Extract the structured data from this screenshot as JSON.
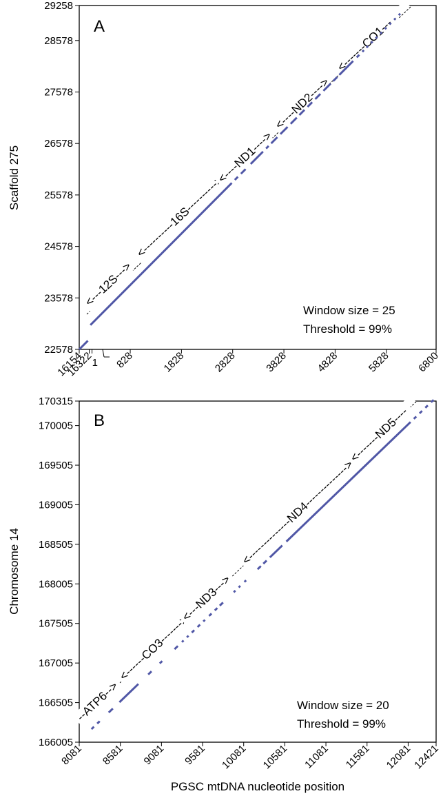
{
  "x_axis_title": "PGSC mtDNA nucleotide position",
  "chart_data": [
    {
      "type": "scatter",
      "panel_label": "A",
      "ylabel": "Scaffold 275",
      "xlabel": "",
      "xlim": [
        16154,
        6800
      ],
      "ylim": [
        22578,
        29258
      ],
      "x_ticks": [
        "16154",
        "16322",
        "1",
        "828",
        "1828",
        "2828",
        "3828",
        "4828",
        "5828",
        "6800"
      ],
      "y_ticks": [
        "22578",
        "23578",
        "24578",
        "25578",
        "26578",
        "27578",
        "28578",
        "29258"
      ],
      "annotations": [
        "Window size = 25",
        "Threshold = 99%"
      ],
      "gene_labels": [
        "<---12S--->",
        "<----------16S---------->",
        "<----ND1---->",
        "<----ND2---->",
        "<-------CO1---"
      ],
      "segments": [
        {
          "x": [
            16154,
            16322
          ],
          "y": [
            22578,
            22746
          ]
        },
        {
          "x": [
            50,
            2810
          ],
          "y": [
            23050,
            25810
          ]
        },
        {
          "x": [
            2870,
            2930
          ],
          "y": [
            25870,
            25930
          ]
        },
        {
          "x": [
            2990,
            3080
          ],
          "y": [
            25990,
            26080
          ]
        },
        {
          "x": [
            3180,
            3420
          ],
          "y": [
            26180,
            26420
          ]
        },
        {
          "x": [
            3480,
            3530
          ],
          "y": [
            26480,
            26530
          ]
        },
        {
          "x": [
            3580,
            3700
          ],
          "y": [
            26580,
            26700
          ]
        },
        {
          "x": [
            3760,
            3900
          ],
          "y": [
            26760,
            26900
          ]
        },
        {
          "x": [
            3960,
            4080
          ],
          "y": [
            26960,
            27080
          ]
        },
        {
          "x": [
            4130,
            4230
          ],
          "y": [
            27130,
            27230
          ]
        },
        {
          "x": [
            4290,
            4380
          ],
          "y": [
            27290,
            27380
          ]
        },
        {
          "x": [
            4440,
            4540
          ],
          "y": [
            27440,
            27540
          ]
        },
        {
          "x": [
            4600,
            4740
          ],
          "y": [
            27600,
            27740
          ]
        },
        {
          "x": [
            4790,
            4870
          ],
          "y": [
            27790,
            27870
          ]
        },
        {
          "x": [
            4910,
            5180
          ],
          "y": [
            27910,
            28180
          ]
        },
        {
          "x": [
            5250,
            5300
          ],
          "y": [
            28250,
            28300
          ]
        },
        {
          "x": [
            5360,
            5390
          ],
          "y": [
            28360,
            28390
          ]
        },
        {
          "x": [
            5440,
            5470
          ],
          "y": [
            28440,
            28470
          ]
        },
        {
          "x": [
            5530,
            5560
          ],
          "y": [
            28530,
            28560
          ]
        },
        {
          "x": [
            5620,
            5650
          ],
          "y": [
            28620,
            28650
          ]
        },
        {
          "x": [
            5710,
            5740
          ],
          "y": [
            28710,
            28740
          ]
        },
        {
          "x": [
            5800,
            5830
          ],
          "y": [
            28800,
            28830
          ]
        },
        {
          "x": [
            5890,
            5920
          ],
          "y": [
            28890,
            28920
          ]
        },
        {
          "x": [
            5980,
            6010
          ],
          "y": [
            28980,
            29010
          ]
        },
        {
          "x": [
            6070,
            6100
          ],
          "y": [
            29070,
            29100
          ]
        }
      ]
    },
    {
      "type": "scatter",
      "panel_label": "B",
      "ylabel": "Chromosome 14",
      "xlabel": "PGSC mtDNA nucleotide position",
      "xlim": [
        8081,
        12421
      ],
      "ylim": [
        166005,
        170315
      ],
      "x_ticks": [
        "8081",
        "8581",
        "9081",
        "9581",
        "10081",
        "10581",
        "11081",
        "11581",
        "12081",
        "12421"
      ],
      "y_ticks": [
        "166005",
        "166505",
        "167005",
        "167505",
        "168005",
        "168505",
        "169005",
        "169505",
        "170005",
        "170315"
      ],
      "annotations": [
        "Window size = 20",
        "Threshold = 99%"
      ],
      "gene_labels": [
        "--ATP6-->",
        "<------CO3------->",
        "<---ND3--->",
        "<--------------ND4-------------->",
        "<-------ND5----"
      ],
      "segments": [
        {
          "x": [
            8230,
            8260
          ],
          "y": [
            166170,
            166200
          ]
        },
        {
          "x": [
            8300,
            8330
          ],
          "y": [
            166240,
            166270
          ]
        },
        {
          "x": [
            8440,
            8490
          ],
          "y": [
            166380,
            166430
          ]
        },
        {
          "x": [
            8570,
            8800
          ],
          "y": [
            166510,
            166740
          ]
        },
        {
          "x": [
            8920,
            8960
          ],
          "y": [
            166860,
            166900
          ]
        },
        {
          "x": [
            9060,
            9090
          ],
          "y": [
            167000,
            167030
          ]
        },
        {
          "x": [
            9240,
            9280
          ],
          "y": [
            167180,
            167220
          ]
        },
        {
          "x": [
            9330,
            9350
          ],
          "y": [
            167270,
            167290
          ]
        },
        {
          "x": [
            9390,
            9410
          ],
          "y": [
            167330,
            167350
          ]
        },
        {
          "x": [
            9450,
            9480
          ],
          "y": [
            167390,
            167420
          ]
        },
        {
          "x": [
            9520,
            9550
          ],
          "y": [
            167460,
            167490
          ]
        },
        {
          "x": [
            9590,
            9610
          ],
          "y": [
            167530,
            167550
          ]
        },
        {
          "x": [
            9660,
            9690
          ],
          "y": [
            167600,
            167630
          ]
        },
        {
          "x": [
            9730,
            9760
          ],
          "y": [
            167670,
            167700
          ]
        },
        {
          "x": [
            9790,
            9830
          ],
          "y": [
            167730,
            167770
          ]
        },
        {
          "x": [
            9960,
            9980
          ],
          "y": [
            167900,
            167920
          ]
        },
        {
          "x": [
            10020,
            10040
          ],
          "y": [
            167960,
            167980
          ]
        },
        {
          "x": [
            10090,
            10110
          ],
          "y": [
            168030,
            168050
          ]
        },
        {
          "x": [
            10250,
            10290
          ],
          "y": [
            168190,
            168230
          ]
        },
        {
          "x": [
            10320,
            10360
          ],
          "y": [
            168260,
            168300
          ]
        },
        {
          "x": [
            10400,
            10550
          ],
          "y": [
            168340,
            168490
          ]
        },
        {
          "x": [
            10600,
            12110
          ],
          "y": [
            168540,
            170050
          ]
        },
        {
          "x": [
            12150,
            12180
          ],
          "y": [
            170090,
            170120
          ]
        },
        {
          "x": [
            12220,
            12250
          ],
          "y": [
            170160,
            170190
          ]
        },
        {
          "x": [
            12290,
            12320
          ],
          "y": [
            170230,
            170260
          ]
        },
        {
          "x": [
            12360,
            12390
          ],
          "y": [
            170300,
            170330
          ]
        }
      ]
    }
  ]
}
